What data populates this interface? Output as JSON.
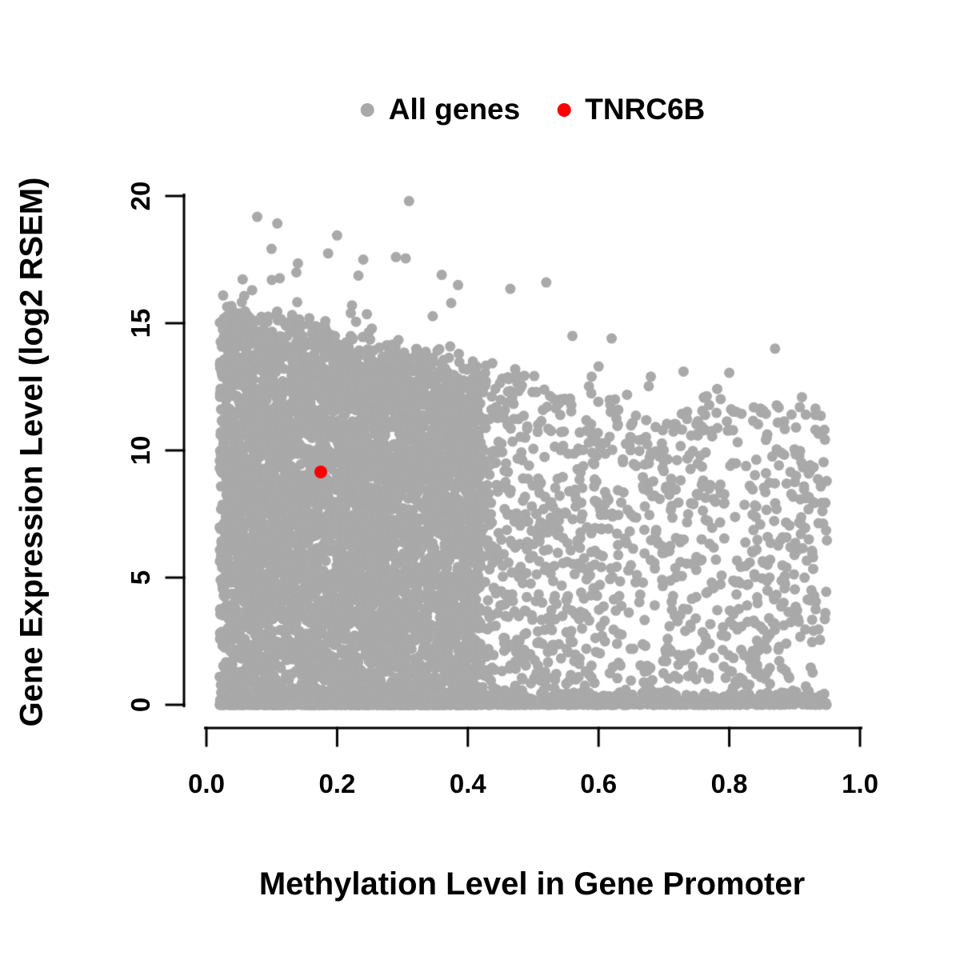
{
  "chart_data": {
    "type": "scatter",
    "title": "",
    "xlabel": "Methylation Level in Gene Promoter",
    "ylabel": "Gene Expression Level (log2 RSEM)",
    "xlim": [
      0.0,
      1.0
    ],
    "ylim": [
      0,
      20
    ],
    "grid": false,
    "x_ticks": [
      "0.0",
      "0.2",
      "0.4",
      "0.6",
      "0.8",
      "1.0"
    ],
    "y_ticks": [
      "0",
      "5",
      "10",
      "15",
      "20"
    ],
    "legend": {
      "position": "top",
      "items": [
        {
          "label": "All genes",
          "color": "#a9a9a9"
        },
        {
          "label": "TNRC6B",
          "color": "#ff0000"
        }
      ]
    },
    "series": [
      {
        "name": "All genes",
        "color": "#a9a9a9",
        "marker": "filled-circle",
        "distribution": {
          "seed": 42,
          "clusters": [
            {
              "n": 6500,
              "x_min": 0.02,
              "x_max": 0.42,
              "x_power": 1.0,
              "top_at_xmin": 15.6,
              "top_slope": -6.5,
              "top_noise": 1.2,
              "bottom_band_frac": 0.25,
              "y_power": 0.9
            },
            {
              "n": 1600,
              "x_min": 0.42,
              "x_max": 0.95,
              "x_power": 1.2,
              "top_at_xmin": 13.0,
              "top_slope": -3.0,
              "top_noise": 1.6,
              "bottom_band_frac": 0.3,
              "y_power": 1.1
            }
          ],
          "outliers": {
            "n": 22,
            "x_min": 0.05,
            "x_max": 0.55,
            "y_extra_max": 4.0
          },
          "notable_points": [
            [
              0.31,
              19.8
            ],
            [
              0.2,
              18.45
            ],
            [
              0.29,
              17.6
            ],
            [
              0.305,
              17.55
            ],
            [
              0.24,
              17.5
            ],
            [
              0.14,
              17.35
            ],
            [
              0.36,
              16.9
            ],
            [
              0.1,
              16.7
            ],
            [
              0.385,
              16.5
            ],
            [
              0.52,
              16.6
            ],
            [
              0.465,
              16.35
            ],
            [
              0.07,
              16.3
            ],
            [
              0.56,
              14.5
            ],
            [
              0.62,
              14.4
            ],
            [
              0.6,
              13.3
            ],
            [
              0.68,
              12.9
            ],
            [
              0.73,
              13.1
            ],
            [
              0.8,
              13.05
            ],
            [
              0.87,
              14.0
            ]
          ]
        }
      },
      {
        "name": "TNRC6B",
        "color": "#ff0000",
        "marker": "filled-circle",
        "points": [
          [
            0.175,
            9.15
          ]
        ]
      }
    ]
  }
}
